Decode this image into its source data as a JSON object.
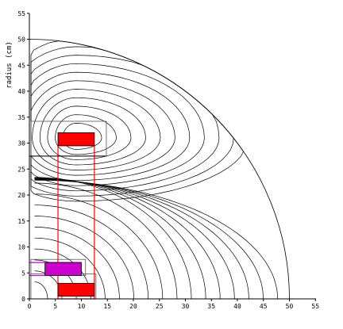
{
  "chart_data": {
    "type": "diagram",
    "ylabel": "radius (cm)",
    "xlim": [
      0,
      55
    ],
    "ylim": [
      0,
      55
    ],
    "x_ticks": [
      0,
      5,
      10,
      15,
      20,
      25,
      30,
      35,
      40,
      45,
      50,
      55
    ],
    "y_ticks": [
      0,
      5,
      10,
      15,
      20,
      25,
      30,
      35,
      40,
      45,
      50,
      55
    ],
    "boundary_radius": 50,
    "flux_contour_count": 28,
    "coils": [
      {
        "name": "upper-coil",
        "x": [
          5.5,
          12.5
        ],
        "y": [
          29.5,
          32
        ],
        "color": "#ff0000"
      },
      {
        "name": "lower-coil",
        "x": [
          5.5,
          12.5
        ],
        "y": [
          0.5,
          3
        ],
        "color": "#ff0000"
      },
      {
        "name": "magenta-coil",
        "x": [
          3,
          10
        ],
        "y": [
          4.5,
          7
        ],
        "color": "#cc00cc"
      }
    ],
    "red_frame": {
      "x": [
        5.5,
        12.5
      ],
      "y": [
        0,
        29.5
      ],
      "color": "#ff0000"
    },
    "gray_boxes": [
      {
        "x": [
          0.3,
          14.8
        ],
        "y": [
          27.5,
          34.2
        ]
      },
      {
        "x": [
          0.3,
          12.8
        ],
        "y": [
          0,
          4.8
        ]
      },
      {
        "x": [
          0.3,
          10.8
        ],
        "y": [
          4.5,
          7.6
        ]
      }
    ]
  }
}
